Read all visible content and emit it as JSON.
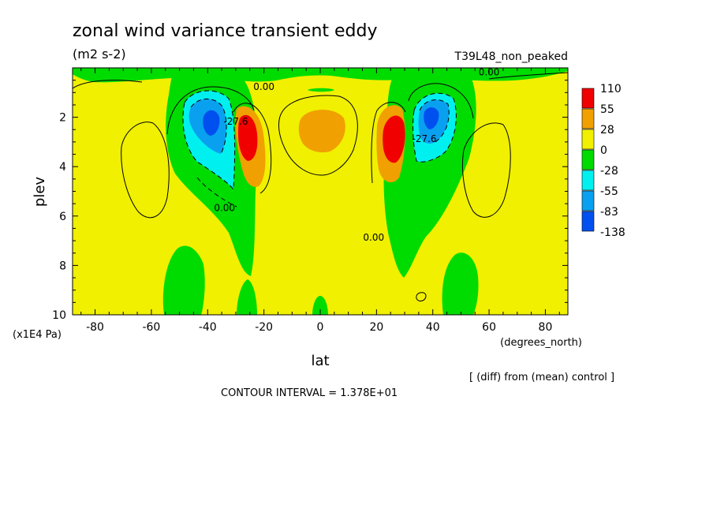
{
  "header": {
    "title": "zonal wind variance transient eddy",
    "units": "(m2 s-2)",
    "experiment": "T39L48_non_peaked"
  },
  "footer": {
    "diff_note": "[ (diff) from (mean) control ]",
    "contour_interval": "CONTOUR INTERVAL = 1.378E+01"
  },
  "colors": {
    "red": "#f00000",
    "orange": "#f0a000",
    "yellow": "#f0f000",
    "green": "#00dc00",
    "cyan": "#00f0f0",
    "light_blue": "#0aa0f0",
    "blue": "#0050f0"
  },
  "chart_data": {
    "type": "heatmap",
    "subtype": "filled-contour",
    "xlabel": "lat",
    "x_units": "(degrees_north)",
    "ylabel": "plev",
    "y_units": "(x1E4 Pa)",
    "xlim": [
      -88,
      88
    ],
    "ylim": [
      10,
      0
    ],
    "x_ticks": [
      "-80",
      "-60",
      "-40",
      "-20",
      "0",
      "20",
      "40",
      "60",
      "80"
    ],
    "y_ticks": [
      "2",
      "4",
      "6",
      "8",
      "10"
    ],
    "legend": {
      "placement": "right",
      "levels": [
        "110",
        "55",
        "28",
        "0",
        "-28",
        "-55",
        "-83",
        "-138"
      ]
    },
    "contour_labels": [
      {
        "text": "0.00",
        "lat": -20,
        "plev": 0.9
      },
      {
        "text": "0.00",
        "lat": 60,
        "plev": 0.3
      },
      {
        "text": "0.00",
        "lat": -34,
        "plev": 5.8
      },
      {
        "text": "0.00",
        "lat": 19,
        "plev": 7.0
      },
      {
        "text": "-27.6",
        "lat": -30,
        "plev": 2.3
      },
      {
        "text": "-27.6",
        "lat": 37,
        "plev": 3.0
      }
    ],
    "features": [
      {
        "sign": "positive",
        "lat": -26,
        "plev": 2.8,
        "peak_band": "110"
      },
      {
        "sign": "positive",
        "lat": 26,
        "plev": 2.8,
        "peak_band": "110"
      },
      {
        "sign": "positive",
        "lat": 0,
        "plev": 2.6,
        "peak_band": "28"
      },
      {
        "sign": "negative",
        "lat": -37,
        "plev": 2.3,
        "peak_band": "-138"
      },
      {
        "sign": "negative",
        "lat": 38,
        "plev": 2.1,
        "peak_band": "-138"
      }
    ]
  }
}
